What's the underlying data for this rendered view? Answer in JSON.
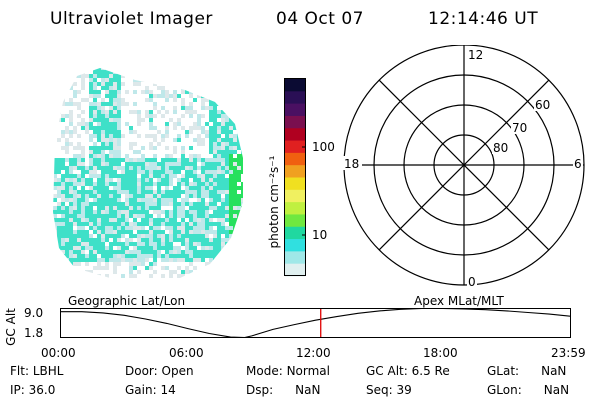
{
  "header": {
    "instrument": "Ultraviolet Imager",
    "date": "04 Oct 07",
    "time": "12:14:46 UT"
  },
  "colorbar": {
    "unit_label": "photon cm⁻²s⁻¹",
    "ticks": [
      "100",
      "10"
    ],
    "colors": [
      "#0b0b33",
      "#2a0f55",
      "#4a1062",
      "#7a0f4f",
      "#b00020",
      "#e02020",
      "#f06010",
      "#f0a020",
      "#f0e020",
      "#f0f060",
      "#c0f040",
      "#70e840",
      "#20d8a0",
      "#30e0e0",
      "#a0e8e8",
      "#e0f0f0"
    ]
  },
  "image_panel": {
    "name": "uv-image",
    "colors": {
      "background": "#dde8ea",
      "speckle": "#bfe8ea",
      "aurora": "#3fe0c8",
      "edge": "#34d9a0",
      "bright": "#27e05e"
    }
  },
  "polar_plot": {
    "mlt_labels": {
      "top": "12",
      "left": "18",
      "right": "6",
      "bottom": "0"
    },
    "lat_labels": [
      "60",
      "70",
      "80"
    ]
  },
  "timeline": {
    "ylabel": "GC Alt",
    "yticks": [
      "9.0",
      "1.8"
    ],
    "left_title": "Geographic Lat/Lon",
    "right_title": "Apex MLat/MLT",
    "xticks": [
      "00:00",
      "06:00",
      "12:00",
      "18:00",
      "23:59"
    ],
    "current_time": "12:14:46",
    "marker_color": "#e00000",
    "chart_data": {
      "type": "line",
      "x": [
        "00:00",
        "01:00",
        "02:00",
        "03:00",
        "04:00",
        "05:00",
        "06:00",
        "07:00",
        "08:00",
        "08:40",
        "09:00",
        "10:00",
        "11:00",
        "12:00",
        "13:00",
        "14:00",
        "15:00",
        "16:00",
        "17:00",
        "18:00",
        "19:00",
        "20:00",
        "21:00",
        "22:00",
        "23:00",
        "23:59"
      ],
      "values": [
        8.2,
        8.2,
        7.9,
        7.3,
        6.4,
        5.3,
        4.0,
        2.8,
        1.9,
        1.8,
        2.2,
        3.8,
        5.0,
        6.1,
        7.0,
        7.8,
        8.4,
        8.8,
        9.0,
        9.0,
        8.9,
        8.7,
        8.4,
        8.0,
        7.6,
        7.1
      ],
      "ylim": [
        1.8,
        9.0
      ],
      "xlim_hours": [
        0,
        24
      ]
    }
  },
  "status": {
    "flt_label": "Flt:",
    "flt_value": "LBHL",
    "ip_label": "IP:",
    "ip_value": "36.0",
    "door_label": "Door:",
    "door_value": "Open",
    "gain_label": "Gain:",
    "gain_value": "14",
    "mode_label": "Mode:",
    "mode_value": "Normal",
    "dsp_label": "Dsp:",
    "dsp_value": "NaN",
    "gcalt_label": "GC Alt:",
    "gcalt_value": "6.5 Re",
    "seq_label": "Seq:",
    "seq_value": "39",
    "glat_label": "GLat:",
    "glat_value": "NaN",
    "glon_label": "GLon:",
    "glon_value": "NaN"
  }
}
